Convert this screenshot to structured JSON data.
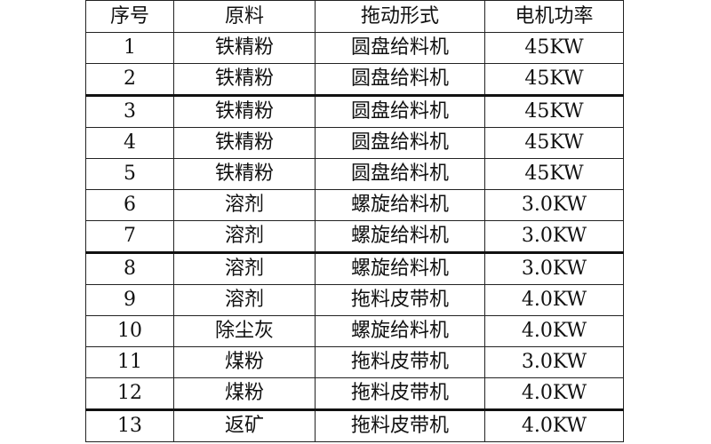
{
  "table": {
    "headers": [
      "序号",
      "原料",
      "拖动形式",
      "电机功率"
    ],
    "rows": [
      [
        "1",
        "铁精粉",
        "圆盘给料机",
        "45KW"
      ],
      [
        "2",
        "铁精粉",
        "圆盘给料机",
        "45KW"
      ],
      [
        "3",
        "铁精粉",
        "圆盘给料机",
        "45KW"
      ],
      [
        "4",
        "铁精粉",
        "圆盘给料机",
        "45KW"
      ],
      [
        "5",
        "铁精粉",
        "圆盘给料机",
        "45KW"
      ],
      [
        "6",
        "溶剂",
        "螺旋给料机",
        "3.0KW"
      ],
      [
        "7",
        "溶剂",
        "螺旋给料机",
        "3.0KW"
      ],
      [
        "8",
        "溶剂",
        "螺旋给料机",
        "3.0KW"
      ],
      [
        "9",
        "溶剂",
        "拖料皮带机",
        "4.0KW"
      ],
      [
        "10",
        "除尘灰",
        "螺旋给料机",
        "4.0KW"
      ],
      [
        "11",
        "煤粉",
        "拖料皮带机",
        "3.0KW"
      ],
      [
        "12",
        "煤粉",
        "拖料皮带机",
        "4.0KW"
      ],
      [
        "13",
        "返矿",
        "拖料皮带机",
        "4.0KW"
      ]
    ]
  }
}
